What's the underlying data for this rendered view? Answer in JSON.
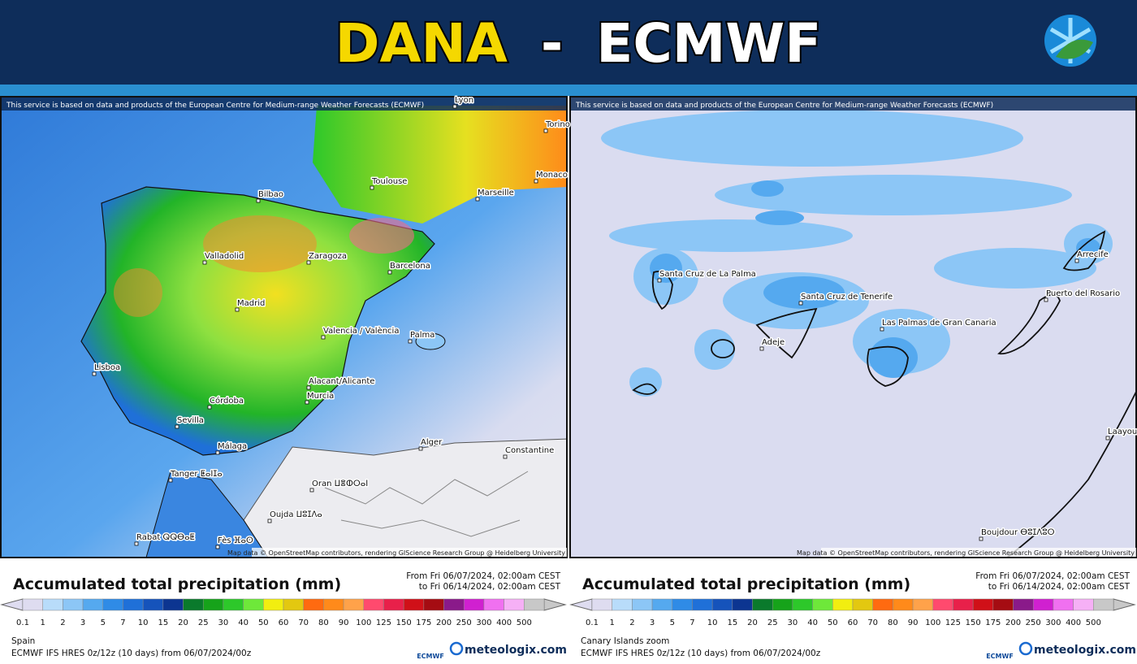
{
  "header": {
    "title_part1": "DANA",
    "separator": "-",
    "title_part2": "ECMWF"
  },
  "legend_scale": {
    "values": [
      0.1,
      1,
      2,
      3,
      5,
      7,
      10,
      15,
      20,
      25,
      30,
      40,
      50,
      60,
      70,
      80,
      90,
      100,
      125,
      150,
      175,
      200,
      250,
      300,
      400,
      500
    ],
    "colors": [
      "#dedcf0",
      "#b8dcfa",
      "#8cc6f6",
      "#55a9ef",
      "#2f8be6",
      "#1f70d8",
      "#1553bb",
      "#0c3591",
      "#0a7a2c",
      "#16a31a",
      "#2dc82a",
      "#6ee83a",
      "#f2ee10",
      "#e3c810",
      "#ff6a10",
      "#ff8a1a",
      "#ffa24a",
      "#ff4a6e",
      "#e8204a",
      "#d01018",
      "#a50c12",
      "#8a1a8a",
      "#d020d0",
      "#f070f0",
      "#f6b0f6",
      "#c8c8c8"
    ]
  },
  "panels": [
    {
      "attribution": "This service is based on data and products of the European Centre for Medium-range Weather Forecasts (ECMWF)",
      "labels": [
        "Lyon",
        "Torino",
        "Toulouse",
        "Monaco",
        "Marseille",
        "Bilbao",
        "Valladolid",
        "Zaragoza",
        "Barcelona",
        "Madrid",
        "Valencia / València",
        "Palma",
        "Lisboa",
        "Alacant/Alicante",
        "Murcia",
        "Córdoba",
        "Sevilla",
        "Málaga",
        "Tanger ⵟⴰⵏⵊⴰ",
        "Alger",
        "Constantine",
        "Oran ⵡⴻⵀⵔⴰⵏ",
        "Oujda ⵡⵓⵊⴷⴰ",
        "Rabat ⵕⵕⴱⴰⵟ",
        "Fès ⴼⴰⵙ"
      ],
      "map_credit": "Map data © OpenStreetMap contributors, rendering GIScience Research Group @ Heidelberg University",
      "legend_title": "Accumulated total precipitation (mm)",
      "from": "From Fri 06/07/2024, 02:00am CEST",
      "to": "to Fri 06/14/2024, 02:00am CEST",
      "region": "Spain",
      "model": "ECMWF IFS HRES 0z/12z (10 days) from 06/07/2024/00z",
      "ecmwf_logo": "ECMWF",
      "brand": "meteologix.com"
    },
    {
      "attribution": "This service is based on data and products of the European Centre for Medium-range Weather Forecasts (ECMWF)",
      "labels": [
        "Santa Cruz de La Palma",
        "Santa Cruz de Tenerife",
        "Adeje",
        "Las Palmas de Gran Canaria",
        "Puerto del Rosario",
        "Arrecife",
        "Laayoune",
        "Boujdour ⴱⵓⵊⴷⵓⵔ"
      ],
      "map_credit": "Map data © OpenStreetMap contributors, rendering GIScience Research Group @ Heidelberg University",
      "legend_title": "Accumulated total precipitation (mm)",
      "from": "From Fri 06/07/2024, 02:00am CEST",
      "to": "to Fri 06/14/2024, 02:00am CEST",
      "region": "Canary Islands zoom",
      "model": "ECMWF IFS HRES 0z/12z (10 days) from 06/07/2024/00z",
      "ecmwf_logo": "ECMWF",
      "brand": "meteologix.com"
    }
  ]
}
